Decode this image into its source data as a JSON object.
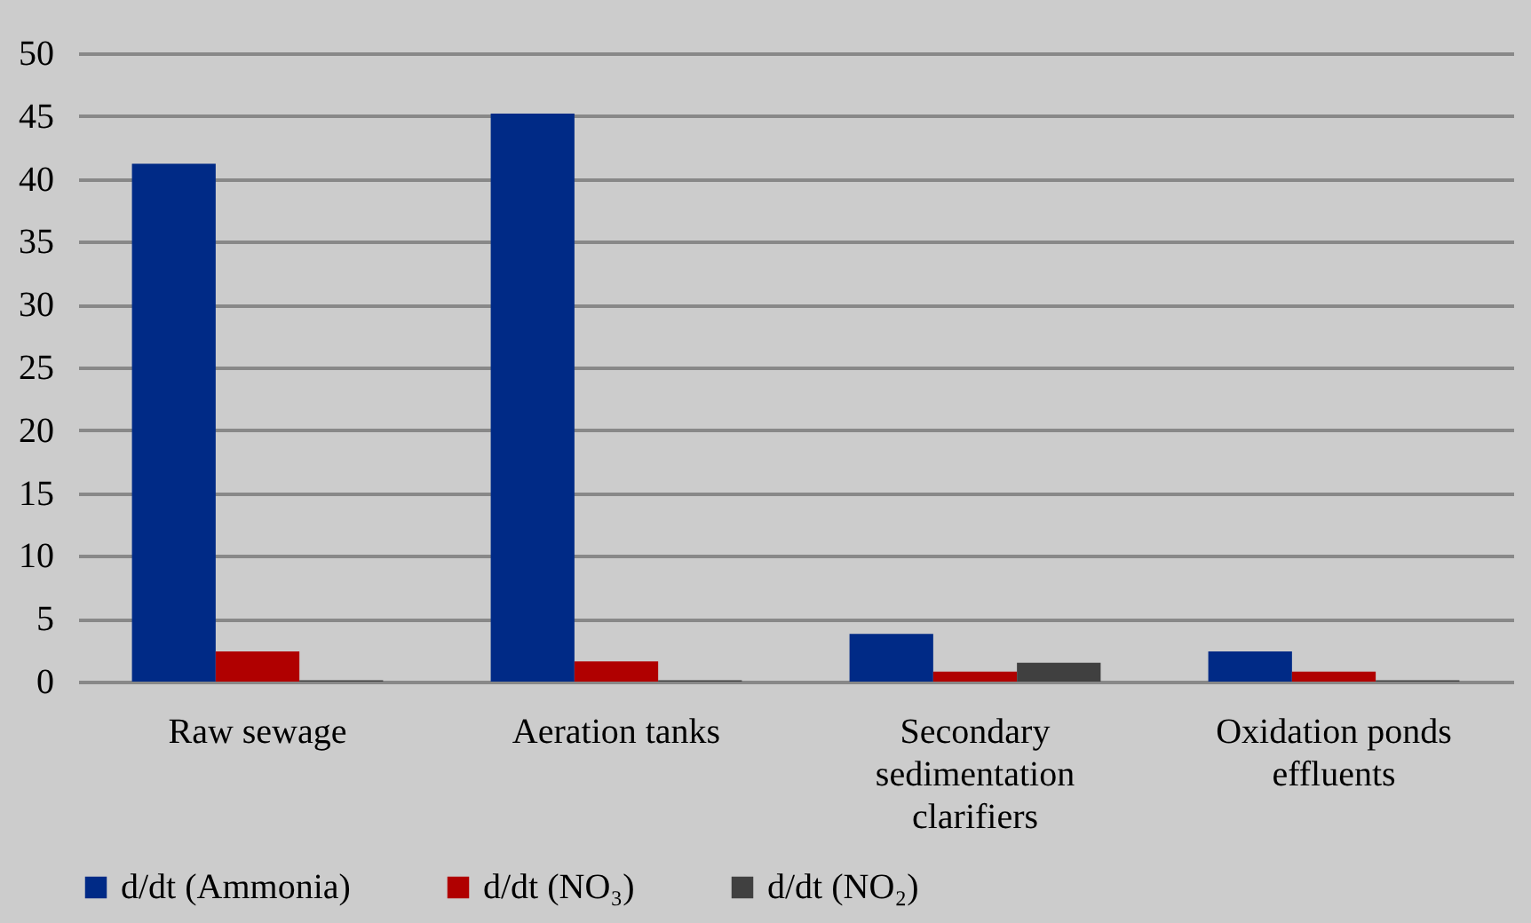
{
  "chart_data": {
    "type": "bar",
    "categories": [
      "Raw sewage",
      "Aeration tanks",
      "Secondary sedimentation clarifiers",
      "Oxidation ponds effluents"
    ],
    "series": [
      {
        "name": "d/dt (Ammonia)",
        "color": "#002a86",
        "values": [
          41.2,
          45.2,
          3.8,
          2.4
        ]
      },
      {
        "name": "d/dt (NO₃)",
        "color": "#b00000",
        "values": [
          2.4,
          1.6,
          0.8,
          0.8
        ]
      },
      {
        "name": "d/dt (NO₂)",
        "color": "#404040",
        "values": [
          0.1,
          0.1,
          1.5,
          0.1
        ]
      }
    ],
    "ylim": [
      0,
      50
    ],
    "yticks": [
      0,
      5,
      10,
      15,
      20,
      25,
      30,
      35,
      40,
      45,
      50
    ],
    "grid": "y",
    "legend": "bottom"
  }
}
